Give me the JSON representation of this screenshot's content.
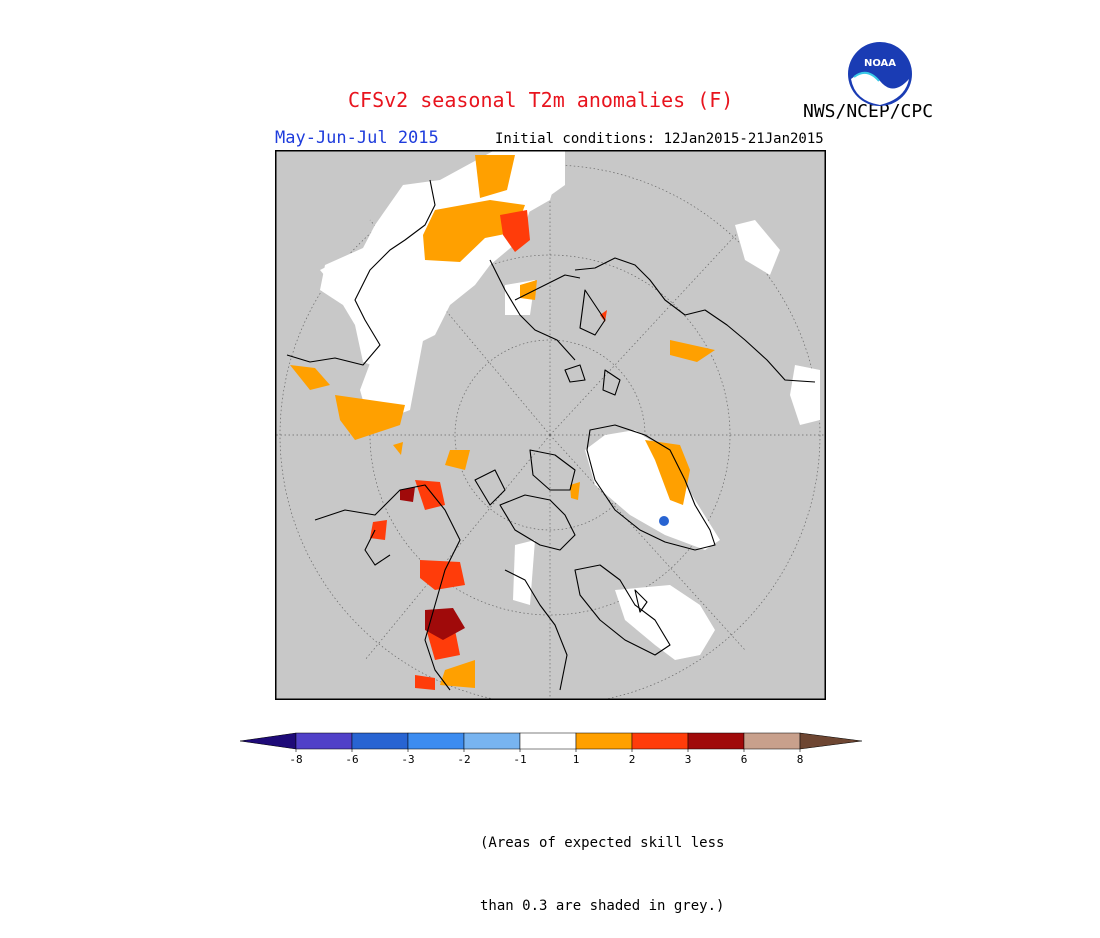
{
  "title": "CFSv2 seasonal T2m anomalies (F)",
  "agency": "NWS/NCEP/CPC",
  "logo_text": "NOAA",
  "season": "May-Jun-Jul 2015",
  "initial_conditions": "Initial conditions: 12Jan2015-21Jan2015",
  "map": {
    "projection": "north-polar-stereographic",
    "masked_color": "#c8c8c8",
    "coastline_color": "#000000",
    "graticule": "dotted"
  },
  "colorbar": {
    "tick_labels": [
      "-8",
      "-6",
      "-3",
      "-2",
      "-1",
      "1",
      "2",
      "3",
      "6",
      "8"
    ],
    "lower_extension_color": "#1e0a78",
    "upper_extension_color": "#6e4632",
    "bins": [
      {
        "range": "-8 to -6",
        "color": "#5040c8"
      },
      {
        "range": "-6 to -3",
        "color": "#2864d2"
      },
      {
        "range": "-3 to -2",
        "color": "#3c8cf0"
      },
      {
        "range": "-2 to -1",
        "color": "#78b4f0"
      },
      {
        "range": "-1 to 1",
        "color": "#ffffff"
      },
      {
        "range": "1 to 2",
        "color": "#ffa000"
      },
      {
        "range": "2 to 3",
        "color": "#ff3c0a"
      },
      {
        "range": "3 to 6",
        "color": "#a00a0a"
      },
      {
        "range": "6 to 8",
        "color": "#c8a08c"
      }
    ]
  },
  "note_lines": [
    "(Areas of expected skill less",
    "than 0.3 are shaded in grey.)"
  ]
}
